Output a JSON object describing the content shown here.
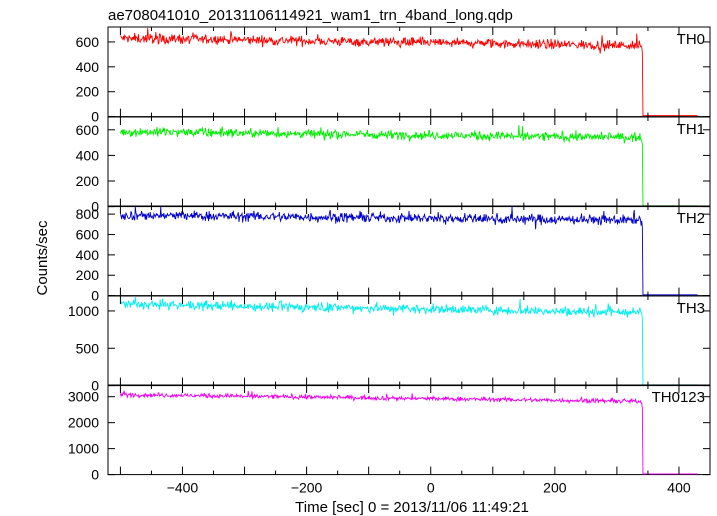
{
  "chart_data": {
    "type": "line",
    "title": "ae708041010_20131106114921_wam1_trn_4band_long.qdp",
    "xlabel": "Time [sec] 0 = 2013/11/06 11:49:21",
    "ylabel": "Counts/sec",
    "xlim": [
      -520,
      450
    ],
    "x_ticks": [
      -400,
      -200,
      0,
      200,
      400
    ],
    "panels": [
      {
        "name": "TH0",
        "color": "#ff0000",
        "ylim": [
          0,
          720
        ],
        "y_ticks": [
          0,
          200,
          400,
          600
        ],
        "x_start": -500,
        "x_drop": 340,
        "x_end": 430,
        "level_start": 630,
        "level_end": 570,
        "noise": 28,
        "tail": 8
      },
      {
        "name": "TH1",
        "color": "#00ee00",
        "ylim": [
          0,
          700
        ],
        "y_ticks": [
          0,
          200,
          400,
          600
        ],
        "x_start": -500,
        "x_drop": 340,
        "x_end": 430,
        "level_start": 585,
        "level_end": 540,
        "noise": 25,
        "tail": 6
      },
      {
        "name": "TH2",
        "color": "#0000cc",
        "ylim": [
          0,
          880
        ],
        "y_ticks": [
          0,
          200,
          400,
          600,
          800
        ],
        "x_start": -500,
        "x_drop": 340,
        "x_end": 430,
        "level_start": 790,
        "level_end": 740,
        "noise": 35,
        "tail": 8
      },
      {
        "name": "TH3",
        "color": "#00eeee",
        "ylim": [
          0,
          1200
        ],
        "y_ticks": [
          0,
          500,
          1000
        ],
        "x_start": -500,
        "x_drop": 340,
        "x_end": 430,
        "level_start": 1090,
        "level_end": 980,
        "noise": 45,
        "tail": 10
      },
      {
        "name": "TH0123",
        "color": "#ee00ee",
        "ylim": [
          0,
          3450
        ],
        "y_ticks": [
          0,
          1000,
          2000,
          3000
        ],
        "x_start": -500,
        "x_drop": 340,
        "x_end": 430,
        "level_start": 3080,
        "level_end": 2820,
        "noise": 60,
        "tail": 25
      }
    ]
  }
}
